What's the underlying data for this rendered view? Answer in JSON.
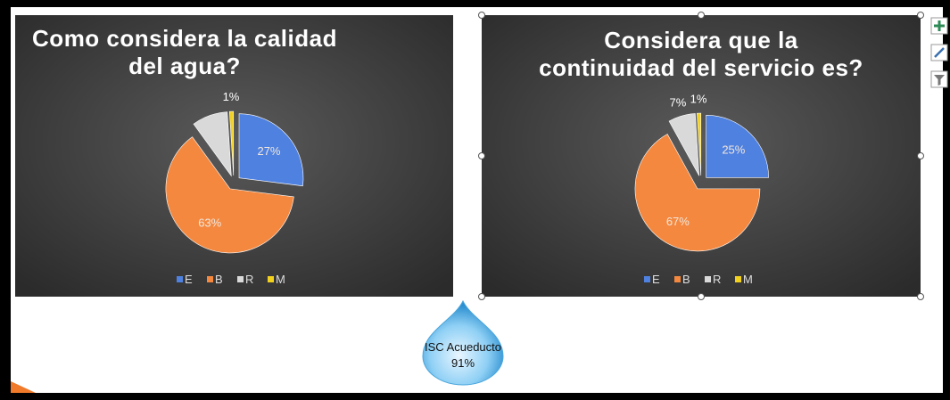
{
  "chart_data": [
    {
      "type": "pie",
      "title": "Como considera la calidad\ndel agua?",
      "categories": [
        "E",
        "B",
        "R",
        "M"
      ],
      "values": [
        27,
        63,
        9,
        1
      ],
      "value_labels": [
        "27%",
        "63%",
        null,
        "1%"
      ],
      "colors": [
        "#4f81e0",
        "#f4883f",
        "#d9d9d9",
        "#f2d01e"
      ],
      "legend": "bottom"
    },
    {
      "type": "pie",
      "title": "Considera que la\ncontinuidad del servicio es?",
      "categories": [
        "E",
        "B",
        "R",
        "M"
      ],
      "values": [
        25,
        67,
        7,
        1
      ],
      "value_labels": [
        "25%",
        "67%",
        "7%",
        "1%"
      ],
      "colors": [
        "#4f81e0",
        "#f4883f",
        "#d9d9d9",
        "#f2d01e"
      ],
      "legend": "bottom"
    }
  ],
  "callout": {
    "lines": [
      "ISC Acueducto",
      "91%"
    ]
  }
}
